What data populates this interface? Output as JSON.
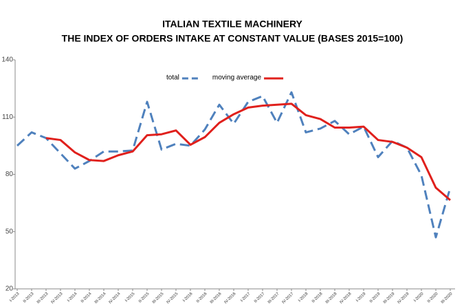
{
  "chart_data": {
    "type": "line",
    "title": "ITALIAN TEXTILE MACHINERY",
    "subtitle": "THE INDEX OF ORDERS INTAKE AT CONSTANT VALUE (BASES 2015=100)",
    "categories": [
      "I-2013",
      "II-2013",
      "III-2013",
      "IV-2013",
      "I-2014",
      "II-2014",
      "III-2014",
      "IV-2014",
      "I-2015",
      "II-2015",
      "III-2015",
      "IV-2015",
      "I-2016",
      "II-2016",
      "III-2016",
      "IV-2016",
      "I-2017",
      "II-2017",
      "III-2017",
      "IV-2017",
      "I-2018",
      "II-2018",
      "III-2018",
      "IV-2018",
      "I-2019",
      "II-2019",
      "III-2019",
      "IV-2019",
      "I-2020",
      "II-2020",
      "III-2020"
    ],
    "series": [
      {
        "name": "total",
        "color": "#4f81bd",
        "dashed": true,
        "values": [
          95,
          102,
          99,
          91,
          83,
          87,
          92,
          92,
          92.5,
          118,
          93,
          96,
          95,
          103.5,
          116.5,
          106.5,
          118,
          121,
          107,
          123,
          102,
          104,
          108,
          101,
          105,
          89,
          97.5,
          94,
          79.5,
          47,
          73
        ]
      },
      {
        "name": "moving average",
        "color": "#e0201c",
        "dashed": false,
        "values": [
          null,
          null,
          99,
          98,
          91.5,
          87.5,
          87,
          90,
          92,
          100.5,
          101,
          103,
          95.5,
          99.5,
          107,
          111.5,
          115,
          116,
          116.5,
          117,
          111,
          109,
          104.5,
          104.5,
          105,
          98,
          97,
          94,
          89,
          73,
          66.5
        ]
      }
    ],
    "ylim": [
      20,
      140
    ],
    "yticks": [
      20,
      50,
      80,
      110,
      140
    ],
    "grid": false,
    "legend": "top"
  }
}
